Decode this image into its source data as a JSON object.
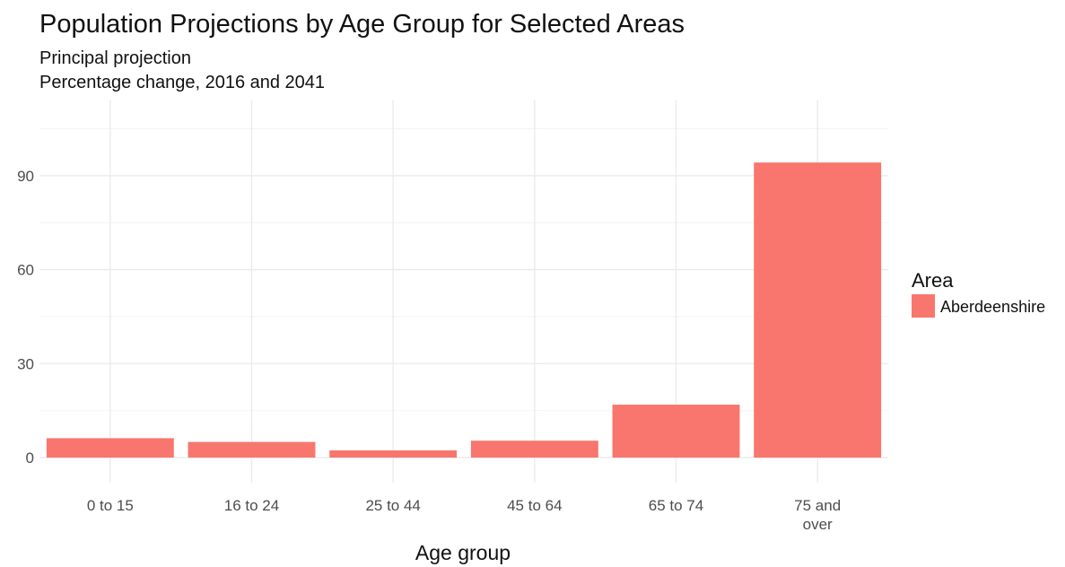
{
  "chart_data": {
    "type": "bar",
    "title": "Population Projections by Age Group for Selected Areas",
    "subtitle": [
      "Principal projection",
      "Percentage change, 2016 and 2041"
    ],
    "xlabel": "Age group",
    "ylabel": "",
    "categories": [
      "0 to 15",
      "16 to 24",
      "25 to 44",
      "45 to 64",
      "65 to 74",
      "75 and over"
    ],
    "category_label_lines": [
      [
        "0 to 15"
      ],
      [
        "16 to 24"
      ],
      [
        "25 to 44"
      ],
      [
        "45 to 64"
      ],
      [
        "65 to 74"
      ],
      [
        "75 and",
        "over"
      ]
    ],
    "series": [
      {
        "name": "Aberdeenshire",
        "color": "#F8766D",
        "values": [
          6.2,
          5.0,
          2.3,
          5.4,
          16.9,
          94.2
        ]
      }
    ],
    "ylim": [
      -8,
      114
    ],
    "yticks": [
      0,
      30,
      60,
      90
    ],
    "grid": true,
    "legend": {
      "title": "Area",
      "position": "right"
    }
  }
}
